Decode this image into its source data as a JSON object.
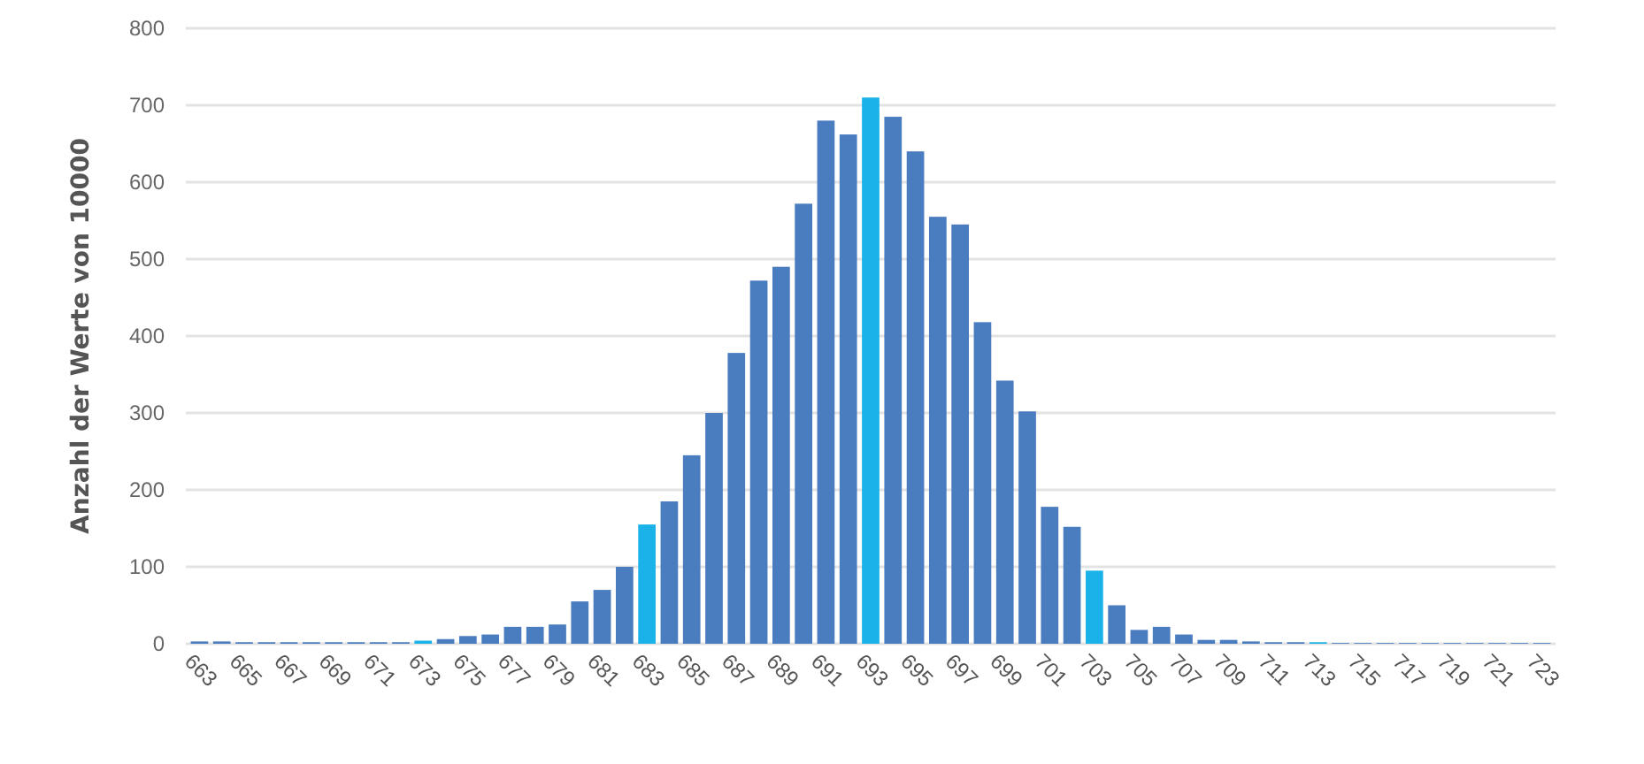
{
  "chart_data": {
    "type": "bar",
    "ylabel": "Anzahl der Werte von 10000",
    "categories": [
      "663",
      null,
      "665",
      null,
      "667",
      null,
      "669",
      null,
      "671",
      null,
      "673",
      null,
      "675",
      null,
      "677",
      null,
      "679",
      null,
      "681",
      null,
      "683",
      null,
      "685",
      null,
      "687",
      null,
      "689",
      null,
      "691",
      null,
      "693",
      null,
      "695",
      null,
      "697",
      null,
      "699",
      null,
      "701",
      null,
      "703",
      null,
      "705",
      null,
      "707",
      null,
      "709",
      null,
      "711",
      null,
      "713",
      null,
      "715",
      null,
      "717",
      null,
      "719",
      null,
      "721",
      null,
      "723"
    ],
    "values": [
      3,
      3,
      2,
      2,
      2,
      2,
      2,
      2,
      2,
      2,
      4,
      6,
      10,
      12,
      22,
      22,
      25,
      55,
      70,
      100,
      155,
      185,
      245,
      300,
      378,
      472,
      490,
      572,
      680,
      662,
      710,
      685,
      640,
      555,
      545,
      418,
      342,
      302,
      178,
      152,
      95,
      50,
      18,
      22,
      12,
      5,
      5,
      3,
      2,
      2,
      2,
      1,
      1,
      1,
      1,
      1,
      1,
      1,
      1,
      1,
      1
    ],
    "colors": [
      "#4a7cc0",
      "#4a7cc0",
      "#4a7cc0",
      "#4a7cc0",
      "#4a7cc0",
      "#4a7cc0",
      "#4a7cc0",
      "#4a7cc0",
      "#4a7cc0",
      "#4a7cc0",
      "#1ab2e8",
      "#4a7cc0",
      "#4a7cc0",
      "#4a7cc0",
      "#4a7cc0",
      "#4a7cc0",
      "#4a7cc0",
      "#4a7cc0",
      "#4a7cc0",
      "#4a7cc0",
      "#1ab2e8",
      "#4a7cc0",
      "#4a7cc0",
      "#4a7cc0",
      "#4a7cc0",
      "#4a7cc0",
      "#4a7cc0",
      "#4a7cc0",
      "#4a7cc0",
      "#4a7cc0",
      "#1ab2e8",
      "#4a7cc0",
      "#4a7cc0",
      "#4a7cc0",
      "#4a7cc0",
      "#4a7cc0",
      "#4a7cc0",
      "#4a7cc0",
      "#4a7cc0",
      "#4a7cc0",
      "#1ab2e8",
      "#4a7cc0",
      "#4a7cc0",
      "#4a7cc0",
      "#4a7cc0",
      "#4a7cc0",
      "#4a7cc0",
      "#4a7cc0",
      "#4a7cc0",
      "#4a7cc0",
      "#1ab2e8",
      "#4a7cc0",
      "#4a7cc0",
      "#4a7cc0",
      "#4a7cc0",
      "#4a7cc0",
      "#4a7cc0",
      "#4a7cc0",
      "#4a7cc0",
      "#4a7cc0",
      "#4a7cc0"
    ],
    "ylim": [
      0,
      800
    ],
    "yticks": [
      0,
      100,
      200,
      300,
      400,
      500,
      600,
      700,
      800
    ],
    "grid": "y"
  }
}
